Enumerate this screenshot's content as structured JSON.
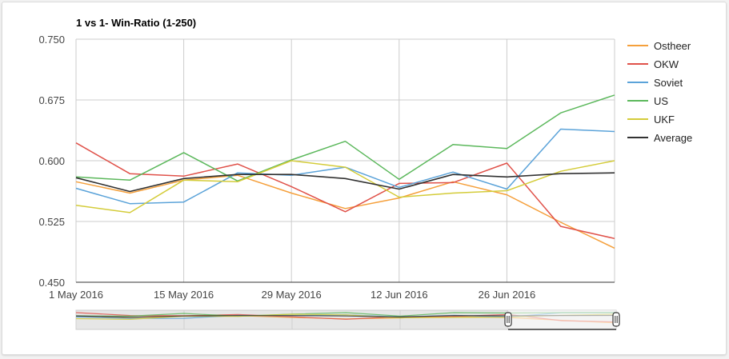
{
  "chart_data": {
    "type": "line",
    "title": "1 vs 1- Win-Ratio (1-250)",
    "xlabel": "",
    "ylabel": "",
    "x": [
      "2016-05-01",
      "2016-05-08",
      "2016-05-15",
      "2016-05-22",
      "2016-05-29",
      "2016-06-05",
      "2016-06-12",
      "2016-06-19",
      "2016-06-26",
      "2016-07-03",
      "2016-07-10"
    ],
    "x_ticks": [
      "1 May 2016",
      "15 May 2016",
      "29 May 2016",
      "12 Jun 2016",
      "26 Jun 2016"
    ],
    "y_ticks": [
      "0.750",
      "0.675",
      "0.600",
      "0.525",
      "0.450"
    ],
    "ylim": [
      0.45,
      0.75
    ],
    "grid": true,
    "legend_position": "right",
    "series": [
      {
        "name": "Ostheer",
        "color": "#f5a03c",
        "values": [
          0.574,
          0.56,
          0.576,
          0.582,
          0.56,
          0.541,
          0.554,
          0.574,
          0.558,
          0.524,
          0.492
        ]
      },
      {
        "name": "OKW",
        "color": "#e0524a",
        "values": [
          0.622,
          0.584,
          0.581,
          0.596,
          0.568,
          0.537,
          0.572,
          0.573,
          0.597,
          0.519,
          0.504
        ]
      },
      {
        "name": "Soviet",
        "color": "#5ba3d9",
        "values": [
          0.566,
          0.547,
          0.549,
          0.585,
          0.582,
          0.592,
          0.567,
          0.586,
          0.565,
          0.639,
          0.636
        ]
      },
      {
        "name": "US",
        "color": "#5cb85c",
        "values": [
          0.58,
          0.576,
          0.61,
          0.575,
          0.601,
          0.624,
          0.577,
          0.62,
          0.615,
          0.659,
          0.681
        ]
      },
      {
        "name": "UKF",
        "color": "#d4cc3a",
        "values": [
          0.545,
          0.536,
          0.576,
          0.574,
          0.6,
          0.592,
          0.555,
          0.56,
          0.563,
          0.587,
          0.6
        ]
      },
      {
        "name": "Average",
        "color": "#333333",
        "values": [
          0.579,
          0.562,
          0.578,
          0.583,
          0.583,
          0.578,
          0.565,
          0.583,
          0.58,
          0.584,
          0.585
        ]
      }
    ],
    "range_selector": {
      "range": [
        "2016-06-26",
        "2016-07-10"
      ]
    }
  }
}
